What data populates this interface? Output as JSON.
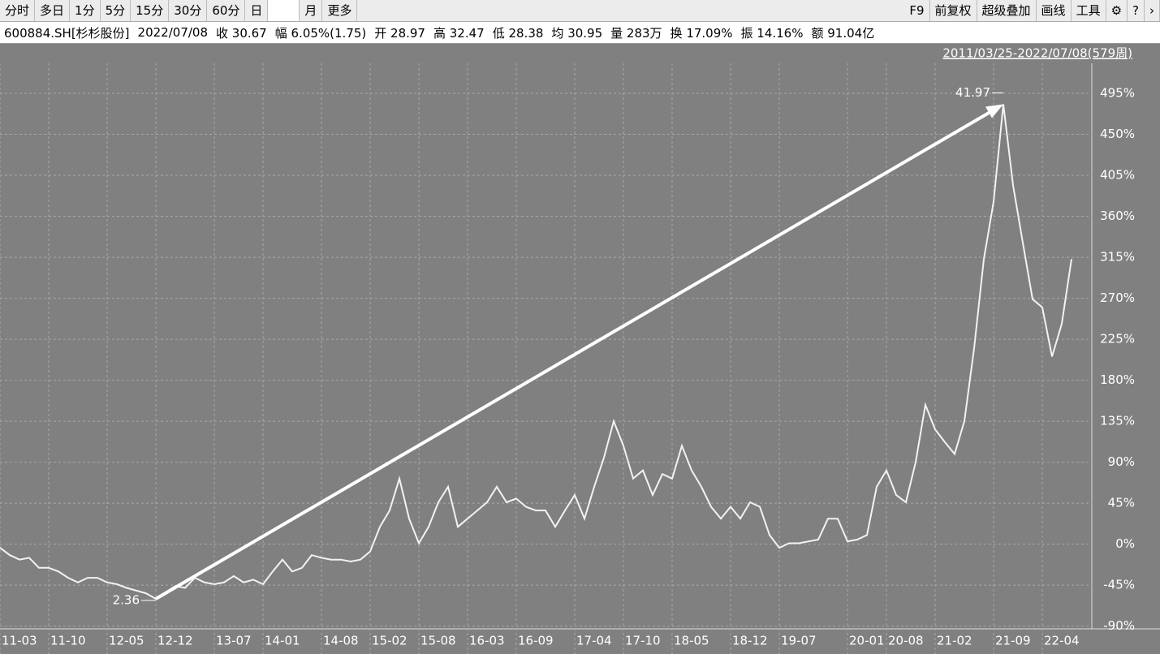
{
  "toolbar": {
    "left": [
      "分时",
      "多日",
      "1分",
      "5分",
      "15分",
      "30分",
      "60分",
      "日",
      "月",
      "更多"
    ],
    "right": [
      "F9",
      "前复权",
      "超级叠加",
      "画线",
      "工具"
    ]
  },
  "quote_bar": {
    "items": [
      "600884.SH[杉杉股份]",
      "2022/07/08",
      "收 30.67",
      "幅 6.05%(1.75)",
      "开 28.97",
      "高 32.47",
      "低 28.38",
      "均 30.95",
      "量 283万",
      "换 17.09%",
      "振 14.16%",
      "额 91.04亿"
    ]
  },
  "chart_data": {
    "type": "line",
    "range_label": "2011/03/25-2022/07/08(579周)",
    "categories": [
      "11-03",
      null,
      null,
      null,
      null,
      "11-10",
      null,
      null,
      null,
      null,
      null,
      "12-05",
      null,
      null,
      null,
      null,
      "12-12",
      null,
      null,
      null,
      null,
      null,
      "13-07",
      null,
      null,
      null,
      null,
      "14-01",
      null,
      null,
      null,
      null,
      null,
      "14-08",
      null,
      null,
      null,
      null,
      "15-02",
      null,
      null,
      null,
      null,
      "15-08",
      null,
      null,
      null,
      null,
      "16-03",
      null,
      null,
      null,
      null,
      "16-09",
      null,
      null,
      null,
      null,
      null,
      "17-04",
      null,
      null,
      null,
      null,
      "17-10",
      null,
      null,
      null,
      null,
      "18-05",
      null,
      null,
      null,
      null,
      null,
      "18-12",
      null,
      null,
      null,
      null,
      "19-07",
      null,
      null,
      null,
      null,
      null,
      null,
      "20-01",
      null,
      null,
      null,
      "20-08",
      null,
      null,
      null,
      null,
      "21-02",
      null,
      null,
      null,
      null,
      null,
      "21-09",
      null,
      null,
      null,
      null,
      "22-04",
      null,
      null,
      null
    ],
    "series": [
      {
        "color": "#f2f2f2",
        "values": [
          -4,
          -12,
          -17,
          -15,
          -26,
          -26,
          -30,
          -37,
          -42,
          -37,
          -37,
          -42,
          -44,
          -48,
          -51,
          -54,
          -60,
          -53,
          -46,
          -48,
          -37,
          -42,
          -44,
          -42,
          -35,
          -42,
          -39,
          -44,
          -30,
          -17,
          -30,
          -26,
          -12,
          -15,
          -17,
          -17,
          -19,
          -17,
          -8,
          19,
          37,
          72,
          28,
          1,
          19,
          46,
          63,
          19,
          28,
          37,
          46,
          63,
          46,
          50,
          41,
          37,
          37,
          19,
          37,
          54,
          28,
          63,
          95,
          135,
          108,
          72,
          81,
          54,
          77,
          72,
          108,
          81,
          63,
          41,
          28,
          41,
          28,
          46,
          41,
          10,
          -4,
          1,
          1,
          3,
          5,
          28,
          28,
          3,
          5,
          10,
          63,
          81,
          54,
          46,
          90,
          153,
          126,
          112,
          99,
          135,
          215,
          313,
          376,
          483,
          394,
          331,
          269,
          260,
          206,
          242,
          313
        ]
      }
    ],
    "annotations": [
      "2.36",
      "41.97"
    ],
    "ylim": [
      -93,
      528
    ],
    "yticks": [
      {
        "value": -90,
        "label": "-90%"
      },
      {
        "value": -45,
        "label": "-45%"
      },
      {
        "value": 0,
        "label": "0%"
      },
      {
        "value": 45,
        "label": "45%"
      },
      {
        "value": 90,
        "label": "90%"
      },
      {
        "value": 135,
        "label": "135%"
      },
      {
        "value": 180,
        "label": "180%"
      },
      {
        "value": 225,
        "label": "225%"
      },
      {
        "value": 270,
        "label": "270%"
      },
      {
        "value": 315,
        "label": "315%"
      },
      {
        "value": 360,
        "label": "360%"
      },
      {
        "value": 405,
        "label": "405%"
      },
      {
        "value": 450,
        "label": "450%"
      },
      {
        "value": 495,
        "label": "495%"
      }
    ],
    "grid": true
  }
}
